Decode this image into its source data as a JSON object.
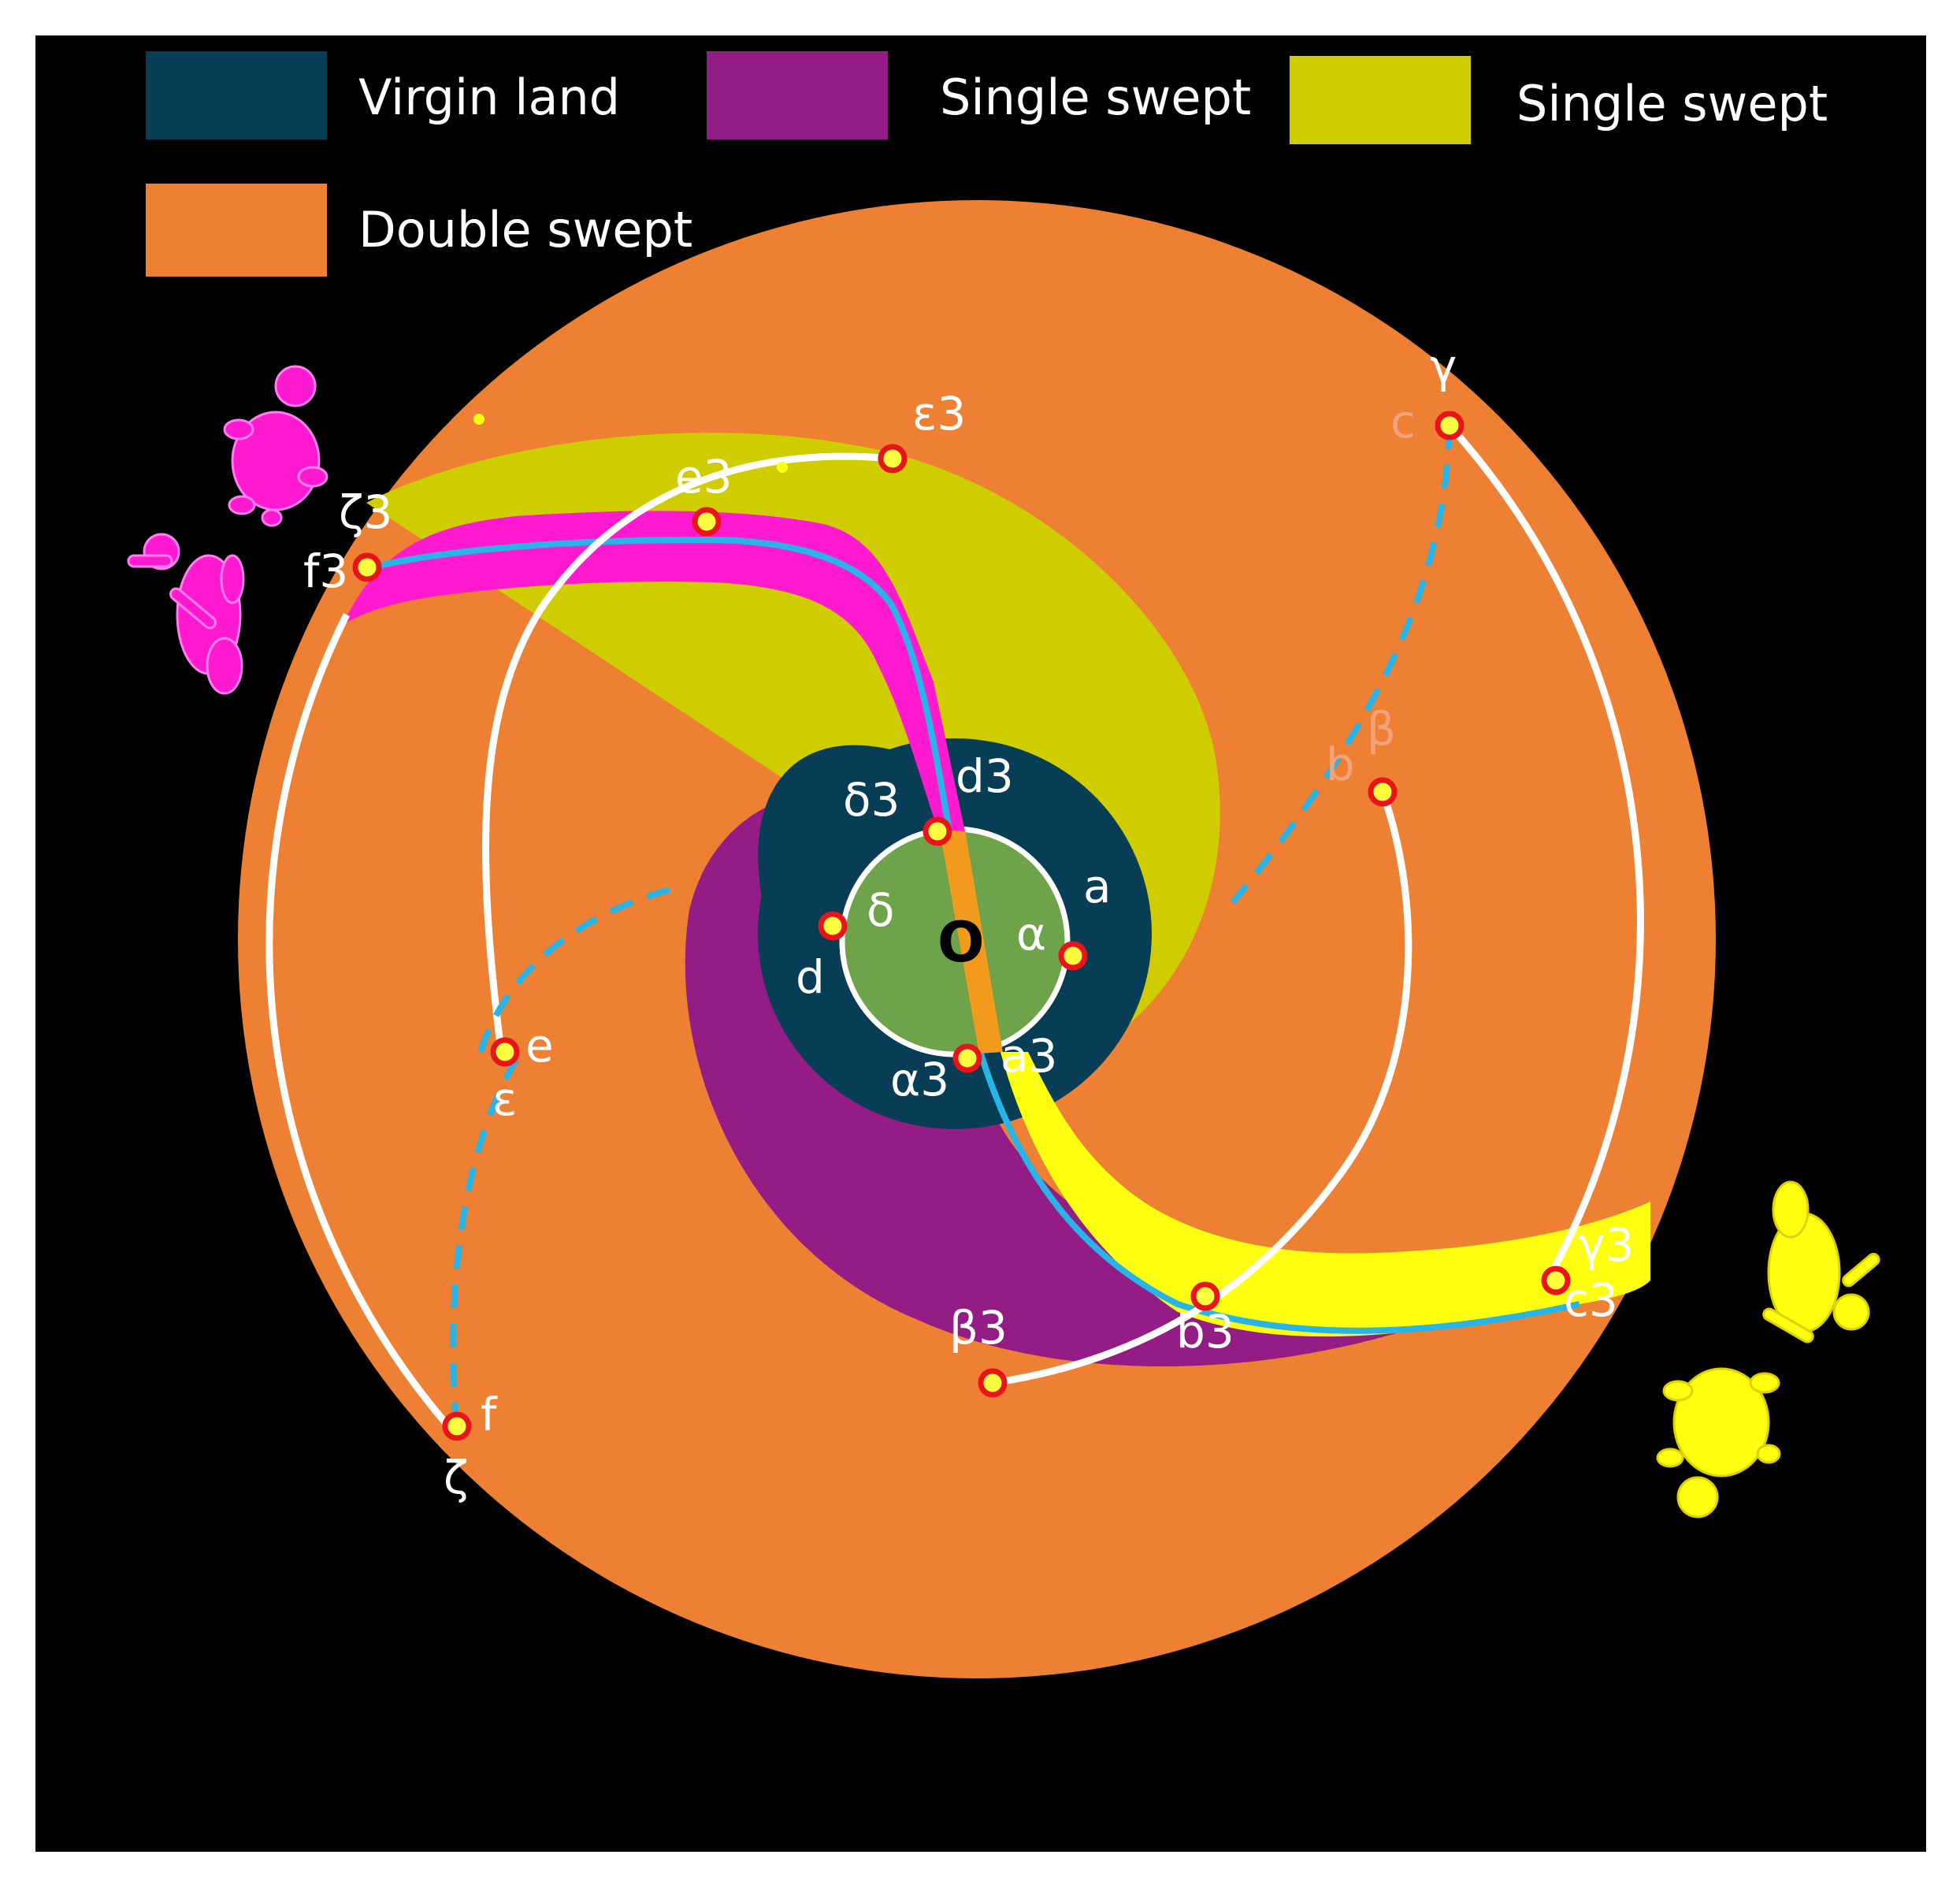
{
  "legend": {
    "items": [
      {
        "label": "Virgin land",
        "color": "#073e55"
      },
      {
        "label": "Single swept",
        "color": "#941d85"
      },
      {
        "label": "Single swept",
        "color": "#cfcc00"
      },
      {
        "label": "Double swept",
        "color": "#ee8033"
      }
    ]
  },
  "colors": {
    "background": "#000000",
    "double_swept": "#ee8033",
    "virgin_land": "#073e55",
    "single_swept_purple": "#941d85",
    "single_swept_olive": "#cfcc00",
    "center_disk": "#6ea34a",
    "magenta_band": "#ff1ad0",
    "yellow_band": "#ffff10",
    "path_white": "#ffffff",
    "path_dashed": "#28b4e6",
    "point_ring": "#e8141a",
    "point_fill": "#ffff40"
  },
  "labels": {
    "center": "O",
    "a": "a",
    "alpha": "α",
    "a3": "a3",
    "alpha3": "α3",
    "b": "b",
    "beta": "β",
    "b3": "b3",
    "beta3": "β3",
    "c": "c",
    "gamma": "γ",
    "c3": "c3",
    "gamma3": "γ3",
    "d": "d",
    "delta": "δ",
    "d3": "d3",
    "delta3": "δ3",
    "e": "e",
    "epsilon": "ε",
    "e3": "e3",
    "epsilon3": "ε3",
    "f": "f",
    "zeta": "ζ",
    "f3": "f3",
    "zeta3": "ζ3"
  },
  "icons": [
    "magenta-turtle-icon",
    "magenta-rabbit-icon",
    "yellow-rabbit-icon",
    "yellow-turtle-icon"
  ]
}
